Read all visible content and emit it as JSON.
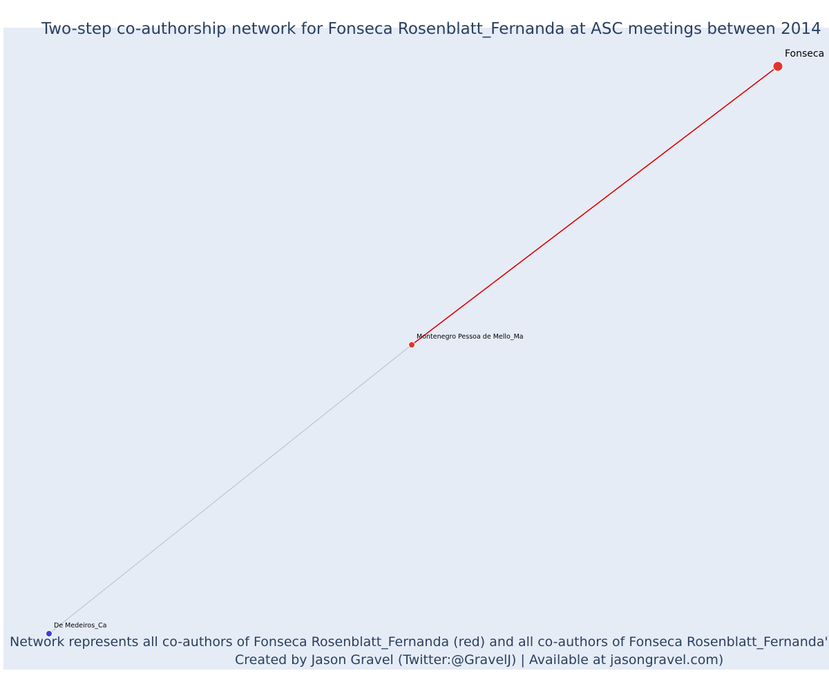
{
  "title": "Two-step co-authorship network for Fonseca Rosenblatt_Fernanda at ASC meetings between 2014",
  "caption": {
    "line1": "Network represents all co-authors of Fonseca Rosenblatt_Fernanda (red) and all co-authors of Fonseca Rosenblatt_Fernanda's co",
    "line2": "Created by Jason Gravel (Twitter:@GravelJ) | Available at jasongravel.com)"
  },
  "colors": {
    "background": "#e5ecf6",
    "text": "#2a3f5f",
    "first_step": "#e3342f",
    "second_step": "#3b3bdc",
    "first_step_edge": "#e00000",
    "second_step_edge": "#b8bcc8"
  },
  "chart_data": {
    "type": "network",
    "nodes": [
      {
        "id": "fonseca",
        "label": "Fonseca",
        "group": "focal"
      },
      {
        "id": "montenegro",
        "label": "Montenegro Pessoa de Mello_Ma",
        "group": "first-step"
      },
      {
        "id": "demedeiros",
        "label": "De Medeiros_Ca",
        "group": "second-step"
      }
    ],
    "edges": [
      {
        "source": "fonseca",
        "target": "montenegro",
        "step": "first"
      },
      {
        "source": "montenegro",
        "target": "demedeiros",
        "step": "second"
      }
    ]
  }
}
